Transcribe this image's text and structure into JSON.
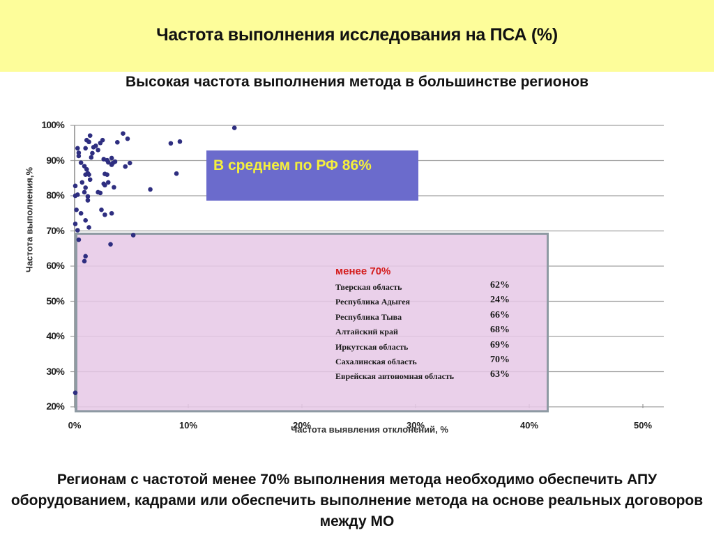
{
  "header": {
    "title": "Частота выполнения исследования на ПСА (%)",
    "subtitle": "Высокая частота выполнения метода в большинстве регионов"
  },
  "callouts": {
    "average": "В среднем по РФ 86%",
    "low_group": {
      "heading": "менее 70%",
      "rows": [
        {
          "name": "Тверская область",
          "value": "62%"
        },
        {
          "name": "Республика Адыгея",
          "value": "24%"
        },
        {
          "name": "Республика Тыва",
          "value": "66%"
        },
        {
          "name": "Алтайский край",
          "value": "68%"
        },
        {
          "name": "Иркутская область",
          "value": "69%"
        },
        {
          "name": "Сахалинская область",
          "value": "70%"
        },
        {
          "name": "Еврейская автономная область",
          "value": "63%"
        }
      ]
    }
  },
  "footer": {
    "text": "Регионам с частотой менее 70% выполнения метода необходимо обеспечить АПУ оборудованием, кадрами или обеспечить выполнение метода на основе реальных договоров между МО"
  },
  "colors": {
    "banner": "#fdfd9a",
    "average_box": "#6b6bcc",
    "average_text": "#f5f03c",
    "low_box": "#e8cce6",
    "low_heading": "#d41b1b",
    "points": "#2e2e80",
    "grid": "#a0a0a0"
  },
  "chart_data": {
    "type": "scatter",
    "title": "Частота выполнения исследования на ПСА (%)",
    "xlabel": "Частота выявления отклонений, %",
    "ylabel": "Частота выполнения,%",
    "xlim": [
      0,
      50
    ],
    "ylim": [
      20,
      100
    ],
    "x_ticks": [
      "0%",
      "10%",
      "20%",
      "30%",
      "40%",
      "50%"
    ],
    "y_ticks": [
      "20%",
      "30%",
      "40%",
      "50%",
      "60%",
      "70%",
      "80%",
      "90%",
      "100%"
    ],
    "grid": "horizontal",
    "legend": "none",
    "points": [
      [
        0.0,
        24.0
      ],
      [
        0.0,
        72.0
      ],
      [
        0.1,
        76.0
      ],
      [
        0.2,
        70.2
      ],
      [
        0.0,
        80.0
      ],
      [
        0.2,
        80.3
      ],
      [
        0.0,
        82.8
      ],
      [
        0.3,
        67.5
      ],
      [
        0.3,
        91.3
      ],
      [
        0.3,
        92.2
      ],
      [
        0.2,
        93.5
      ],
      [
        0.5,
        89.4
      ],
      [
        0.5,
        75.0
      ],
      [
        0.6,
        83.8
      ],
      [
        0.8,
        88.4
      ],
      [
        0.9,
        86.0
      ],
      [
        0.8,
        81.0
      ],
      [
        0.9,
        73.0
      ],
      [
        1.1,
        86.4
      ],
      [
        1.0,
        87.5
      ],
      [
        1.2,
        86.0
      ],
      [
        1.3,
        84.6
      ],
      [
        0.9,
        82.3
      ],
      [
        1.1,
        79.8
      ],
      [
        1.1,
        78.7
      ],
      [
        1.2,
        71.0
      ],
      [
        0.9,
        62.8
      ],
      [
        0.8,
        61.4
      ],
      [
        1.0,
        95.8
      ],
      [
        1.2,
        95.3
      ],
      [
        0.9,
        93.5
      ],
      [
        1.5,
        92.1
      ],
      [
        1.8,
        94.2
      ],
      [
        1.6,
        93.8
      ],
      [
        2.0,
        93.0
      ],
      [
        1.4,
        90.9
      ],
      [
        1.3,
        97.1
      ],
      [
        2.0,
        81.0
      ],
      [
        2.2,
        80.8
      ],
      [
        2.5,
        83.4
      ],
      [
        2.6,
        83.0
      ],
      [
        2.3,
        76.0
      ],
      [
        2.6,
        74.6
      ],
      [
        2.8,
        86.0
      ],
      [
        2.6,
        86.2
      ],
      [
        2.9,
        83.8
      ],
      [
        2.5,
        90.4
      ],
      [
        2.9,
        89.5
      ],
      [
        2.8,
        90.1
      ],
      [
        3.2,
        90.7
      ],
      [
        3.3,
        89.3
      ],
      [
        3.2,
        88.8
      ],
      [
        3.5,
        89.7
      ],
      [
        3.4,
        82.4
      ],
      [
        3.2,
        75.0
      ],
      [
        3.1,
        66.2
      ],
      [
        3.7,
        95.2
      ],
      [
        4.2,
        97.7
      ],
      [
        4.6,
        96.2
      ],
      [
        4.4,
        88.3
      ],
      [
        4.8,
        89.3
      ],
      [
        5.1,
        68.8
      ],
      [
        6.6,
        81.8
      ],
      [
        8.4,
        94.9
      ],
      [
        9.2,
        95.4
      ],
      [
        8.9,
        86.3
      ],
      [
        14.0,
        99.3
      ],
      [
        2.4,
        95.8
      ],
      [
        2.2,
        95.0
      ]
    ]
  }
}
